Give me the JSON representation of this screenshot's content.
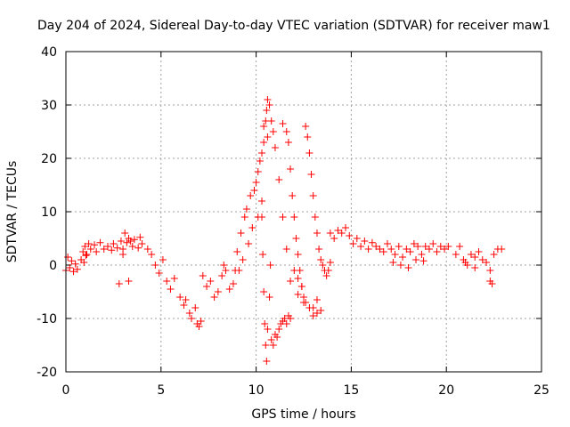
{
  "chart_data": {
    "type": "scatter",
    "title": "Day 204 of 2024, Sidereal Day-to-day VTEC variation (SDTVAR) for receiver maw1",
    "xlabel": "GPS time / hours",
    "ylabel": "SDTVAR / TECUs",
    "xlim": [
      0,
      25
    ],
    "ylim": [
      -20,
      40
    ],
    "xticks": [
      0,
      5,
      10,
      15,
      20,
      25
    ],
    "yticks": [
      -20,
      -10,
      0,
      10,
      20,
      30,
      40
    ],
    "xtick_labels": [
      "0",
      "5",
      "10",
      "15",
      "20",
      "25"
    ],
    "ytick_labels": [
      "-20",
      "-10",
      "0",
      "10",
      "20",
      "30",
      "40"
    ],
    "grid": true,
    "marker": "+",
    "color": "#ff0000",
    "series": [
      {
        "name": "SDTVAR",
        "x": [
          0.0,
          0.1,
          0.2,
          0.3,
          0.4,
          0.5,
          0.6,
          0.8,
          0.9,
          1.0,
          1.1,
          1.2,
          1.3,
          1.5,
          1.6,
          1.8,
          2.0,
          2.2,
          2.4,
          2.5,
          2.7,
          2.9,
          3.0,
          3.2,
          3.3,
          3.5,
          3.6,
          3.8,
          3.9,
          4.0,
          0.95,
          1.05,
          2.8,
          3.0,
          3.3,
          3.1,
          3.4,
          4.3,
          4.5,
          4.7,
          4.9,
          5.1,
          5.3,
          5.5,
          5.7,
          6.0,
          6.2,
          6.3,
          6.5,
          6.6,
          6.8,
          6.9,
          7.0,
          7.1,
          7.2,
          7.4,
          7.6,
          7.8,
          8.0,
          8.2,
          8.3,
          8.4,
          8.6,
          8.8,
          8.9,
          9.0,
          9.2,
          9.4,
          9.5,
          9.7,
          9.9,
          10.0,
          10.1,
          10.2,
          10.3,
          10.4,
          9.1,
          9.3,
          9.6,
          9.8,
          10.1,
          10.3,
          10.3,
          10.35,
          10.4,
          10.45,
          10.5,
          10.55,
          10.6,
          10.7,
          10.75,
          10.5,
          10.55,
          10.6,
          10.7,
          10.8,
          10.9,
          11.0,
          11.2,
          11.4,
          11.6,
          11.8,
          10.8,
          10.9,
          11.0,
          11.1,
          11.2,
          11.3,
          11.4,
          11.5,
          11.6,
          11.7,
          11.8,
          10.4,
          10.6,
          11.4,
          11.6,
          11.7,
          11.8,
          11.9,
          12.0,
          12.1,
          12.2,
          12.3,
          12.4,
          12.5,
          12.6,
          12.8,
          13.0,
          13.2,
          13.4,
          12.0,
          12.2,
          12.4,
          12.6,
          12.7,
          12.8,
          12.9,
          13.0,
          13.1,
          13.2,
          13.3,
          13.4,
          13.5,
          13.6,
          13.7,
          13.8,
          13.9,
          12.2,
          12.5,
          13.0,
          13.2,
          13.9,
          14.1,
          14.3,
          14.5,
          14.7,
          14.9,
          15.1,
          15.3,
          15.5,
          15.7,
          15.9,
          16.1,
          16.3,
          16.5,
          16.7,
          16.9,
          17.1,
          17.3,
          17.5,
          17.7,
          17.9,
          18.1,
          18.3,
          18.5,
          18.7,
          18.9,
          19.1,
          19.3,
          19.5,
          19.7,
          19.9,
          20.1,
          17.2,
          17.6,
          18.0,
          18.4,
          18.8,
          20.5,
          20.7,
          20.9,
          21.1,
          21.3,
          21.5,
          21.7,
          21.9,
          22.1,
          22.3,
          22.5,
          22.7,
          22.9,
          22.3,
          22.4,
          21.0,
          21.5
        ],
        "y": [
          -1.0,
          1.5,
          -0.5,
          0.8,
          -1.2,
          0.2,
          -0.8,
          1.0,
          2.5,
          3.5,
          2.0,
          4.0,
          3.0,
          3.8,
          2.5,
          4.2,
          3.0,
          3.5,
          2.8,
          4.0,
          3.2,
          4.5,
          3.0,
          4.2,
          5.0,
          3.5,
          4.8,
          3.2,
          5.2,
          4.0,
          0.5,
          1.8,
          -3.5,
          2.0,
          -3.0,
          6.0,
          4.5,
          3.0,
          2.0,
          0.0,
          -1.5,
          1.0,
          -3.0,
          -4.5,
          -2.5,
          -6.0,
          -7.5,
          -6.5,
          -9.0,
          -10.0,
          -8.0,
          -11.0,
          -11.5,
          -10.5,
          -2.0,
          -4.0,
          -3.0,
          -6.0,
          -5.0,
          -2.0,
          0.0,
          -1.0,
          -4.5,
          -3.5,
          -1.0,
          2.5,
          6.0,
          9.0,
          10.5,
          13.0,
          14.0,
          15.5,
          17.5,
          19.5,
          21.0,
          23.0,
          -1.0,
          1.0,
          4.0,
          7.0,
          9.0,
          12.0,
          9.0,
          2.0,
          -5.0,
          -11.0,
          -15.0,
          -18.0,
          -12.0,
          -6.0,
          0.0,
          27.0,
          29.0,
          31.0,
          30.0,
          27.0,
          25.0,
          22.0,
          16.0,
          9.0,
          3.0,
          -3.0,
          -14.0,
          -15.0,
          -13.0,
          -13.5,
          -12.0,
          -11.0,
          -10.5,
          -10.0,
          -11.0,
          -9.5,
          -10.0,
          26.0,
          24.0,
          26.5,
          25.0,
          23.0,
          18.0,
          13.0,
          9.0,
          5.0,
          2.0,
          -1.0,
          -4.0,
          -6.0,
          -7.0,
          -8.0,
          -9.5,
          -9.0,
          -8.5,
          -1.0,
          -2.5,
          -4.0,
          26.0,
          24.0,
          21.0,
          17.0,
          13.0,
          9.0,
          6.0,
          3.0,
          1.0,
          0.0,
          -1.0,
          -2.0,
          -1.0,
          0.5,
          -5.5,
          -7.0,
          -8.0,
          -6.5,
          6.0,
          5.0,
          6.5,
          6.0,
          7.0,
          5.5,
          4.0,
          5.0,
          3.5,
          4.5,
          3.0,
          4.2,
          3.5,
          3.0,
          2.5,
          4.0,
          3.0,
          2.0,
          3.5,
          1.5,
          3.0,
          2.5,
          4.0,
          3.5,
          2.0,
          3.5,
          3.0,
          4.0,
          2.5,
          3.5,
          3.0,
          3.5,
          0.5,
          0.0,
          -0.5,
          1.0,
          0.8,
          2.0,
          3.5,
          1.0,
          0.0,
          2.0,
          -0.5,
          2.5,
          1.0,
          0.5,
          -1.0,
          2.0,
          3.0,
          3.0,
          -3.0,
          -3.5,
          0.5,
          1.5
        ]
      }
    ]
  }
}
